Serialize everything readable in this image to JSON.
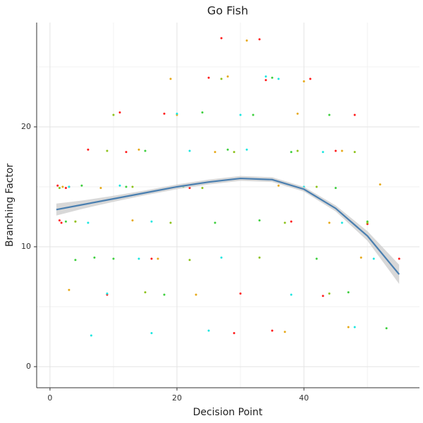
{
  "chart_data": {
    "type": "scatter",
    "title": "Go Fish",
    "x_label": "Decision Point",
    "y_label": "Branching Factor",
    "xlim": [
      -2.1,
      58.2
    ],
    "ylim": [
      -1.76,
      28.7
    ],
    "xticks": [
      0,
      20,
      40
    ],
    "yticks": [
      0,
      10,
      20
    ],
    "x_minor_ticks": [
      10,
      30,
      50
    ],
    "y_minor_ticks": [
      5,
      15,
      25
    ],
    "grid": true,
    "series": [
      {
        "color": "#ff1a1a",
        "x": [
          1.2,
          1.8,
          2.5,
          1.5,
          3.0,
          6,
          12,
          18,
          25,
          33,
          41,
          48,
          27,
          34,
          45,
          11,
          22,
          38,
          50,
          16,
          30,
          43,
          9,
          35,
          55,
          29
        ],
        "values": [
          15.1,
          12.0,
          14.9,
          12.2,
          15.0,
          18.1,
          17.9,
          21.1,
          24.1,
          27.3,
          24.0,
          21.0,
          27.4,
          23.9,
          18.0,
          21.2,
          14.9,
          12.1,
          11.9,
          9.0,
          6.1,
          5.9,
          6.0,
          3.0,
          9.0,
          2.8
        ]
      },
      {
        "color": "#e6a817",
        "x": [
          2,
          4,
          8,
          14,
          20,
          28,
          36,
          44,
          49,
          3,
          17,
          26,
          31,
          40,
          47,
          13,
          23,
          39,
          52,
          46,
          19,
          37
        ],
        "values": [
          15.0,
          12.1,
          14.9,
          18.1,
          21.0,
          24.2,
          15.1,
          12.0,
          9.1,
          6.4,
          9.0,
          17.9,
          27.2,
          23.8,
          3.3,
          12.2,
          6.0,
          21.1,
          15.2,
          18.0,
          24.0,
          2.9
        ]
      },
      {
        "color": "#3ccf3c",
        "x": [
          2.5,
          5,
          10,
          15,
          21,
          26,
          32,
          38,
          45,
          50,
          7,
          18,
          24,
          42,
          35,
          12,
          28,
          47,
          4,
          33,
          44,
          53
        ],
        "values": [
          12.1,
          15.1,
          9.0,
          18.0,
          15.0,
          12.0,
          21.0,
          17.9,
          14.9,
          12.1,
          9.1,
          6.0,
          21.2,
          9.0,
          24.1,
          15.0,
          18.1,
          6.2,
          8.9,
          12.2,
          21.0,
          3.2
        ]
      },
      {
        "color": "#1ae6e0",
        "x": [
          3,
          6,
          11,
          16,
          22,
          27,
          34,
          40,
          46,
          51,
          9,
          20,
          30,
          36,
          43,
          25,
          14,
          38,
          48,
          31,
          6.5,
          16
        ],
        "values": [
          15.0,
          12.0,
          15.1,
          12.1,
          18.0,
          9.1,
          24.2,
          15.0,
          12.0,
          9.0,
          6.1,
          21.1,
          21.0,
          24.0,
          17.9,
          3.0,
          9.0,
          6.0,
          3.3,
          18.1,
          2.6,
          2.8
        ]
      },
      {
        "color": "#8cc21a",
        "x": [
          1.5,
          4,
          9,
          13,
          19,
          24,
          29,
          37,
          42,
          48,
          10,
          22,
          33,
          44,
          27,
          39,
          15,
          50
        ],
        "values": [
          14.9,
          12.1,
          18.0,
          15.0,
          12.0,
          14.9,
          17.9,
          12.0,
          15.0,
          17.9,
          21.0,
          8.9,
          9.1,
          6.1,
          24.0,
          18.0,
          6.2,
          12.0
        ]
      }
    ],
    "smooth": {
      "color": "#4a7fb0",
      "band_color": "#c8c8c8",
      "x": [
        1,
        5,
        10,
        15,
        20,
        25,
        30,
        35,
        40,
        45,
        50,
        55
      ],
      "values": [
        13.1,
        13.5,
        14.0,
        14.5,
        15.0,
        15.4,
        15.7,
        15.6,
        14.8,
        13.2,
        10.9,
        7.7
      ],
      "lower": [
        12.6,
        13.15,
        13.75,
        14.3,
        14.8,
        15.2,
        15.5,
        15.4,
        14.6,
        12.95,
        10.5,
        6.9
      ],
      "upper": [
        13.6,
        13.85,
        14.25,
        14.7,
        15.2,
        15.6,
        15.9,
        15.8,
        15.0,
        13.45,
        11.3,
        8.5
      ]
    }
  }
}
